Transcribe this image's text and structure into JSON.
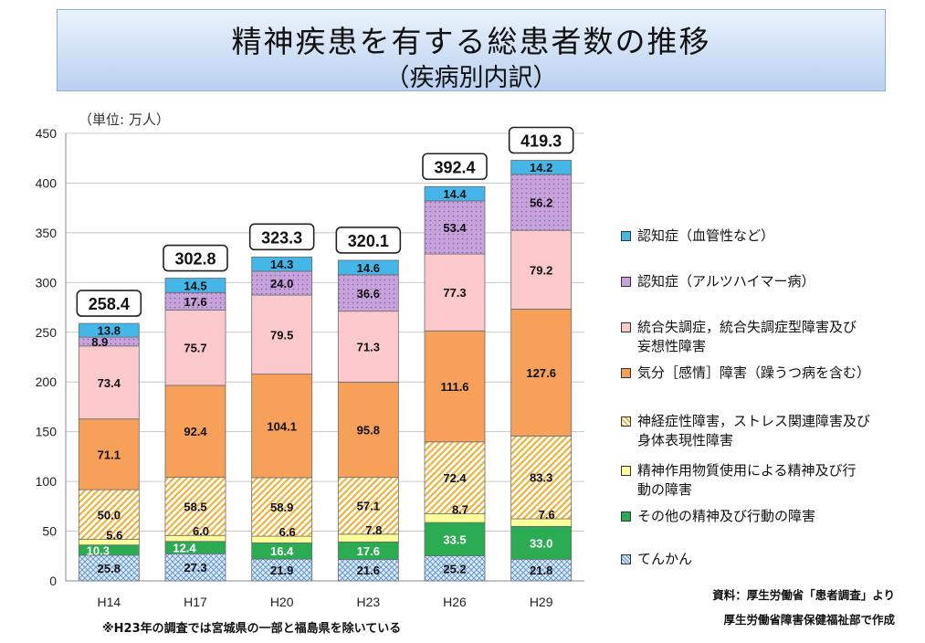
{
  "header": {
    "title": "精神疾患を有する総患者数の推移",
    "subtitle": "（疾病別内訳）"
  },
  "unit_label": "（単位: 万人）",
  "source": {
    "line1": "資料：厚生労働省「患者調査」より",
    "line2": "厚生労働省障害保健福祉部で作成"
  },
  "footnote": "※H23年の調査では宮城県の一部と福島県を除いている",
  "chart_data": {
    "type": "bar",
    "stacked": true,
    "title": "精神疾患を有する総患者数の推移",
    "ylim": [
      0,
      450
    ],
    "yticks": [
      0,
      50,
      100,
      150,
      200,
      250,
      300,
      350,
      400,
      450
    ],
    "grid": true,
    "legend_position": "right",
    "categories": [
      "H14",
      "H17",
      "H20",
      "H23",
      "H26",
      "H29"
    ],
    "totals": [
      "258.4",
      "302.8",
      "323.3",
      "320.1",
      "392.4",
      "419.3"
    ],
    "series": [
      {
        "name": "てんかん",
        "values": [
          25.8,
          27.3,
          21.9,
          21.6,
          25.2,
          21.8
        ],
        "labels": [
          "25.8",
          "27.3",
          "21.9",
          "21.6",
          "25.2",
          "21.8"
        ],
        "color": "#bcd7f0",
        "pattern": "crosshatch"
      },
      {
        "name": "その他の精神及び行動の障害",
        "values": [
          10.3,
          12.4,
          16.4,
          17.6,
          33.5,
          33.0
        ],
        "labels": [
          "10.3",
          "12.4",
          "16.4",
          "17.6",
          "33.5",
          "33.0"
        ],
        "color": "#2bab52"
      },
      {
        "name": "精神作用物質使用による精神及び行動の障害",
        "values": [
          5.6,
          6.0,
          6.6,
          7.8,
          8.7,
          7.6
        ],
        "labels": [
          "5.6",
          "6.0",
          "6.6",
          "7.8",
          "8.7",
          "7.6"
        ],
        "color": "#ffff99"
      },
      {
        "name": "神経症性障害，ストレス関連障害及び身体表現性障害",
        "values": [
          50.0,
          58.5,
          58.9,
          57.1,
          72.4,
          83.3
        ],
        "labels": [
          "50.0",
          "58.5",
          "58.9",
          "57.1",
          "72.4",
          "83.3"
        ],
        "color": "#fbd58a",
        "pattern": "diagonal"
      },
      {
        "name": "気分［感情］障害（躁うつ病を含む）",
        "values": [
          71.1,
          92.4,
          104.1,
          95.8,
          111.6,
          127.6
        ],
        "labels": [
          "71.1",
          "92.4",
          "104.1",
          "95.8",
          "111.6",
          "127.6"
        ],
        "color": "#f7a05a"
      },
      {
        "name": "統合失調症，統合失調症型障害及び妄想性障害",
        "values": [
          73.4,
          75.7,
          79.5,
          71.3,
          77.3,
          79.2
        ],
        "labels": [
          "73.4",
          "75.7",
          "79.5",
          "71.3",
          "77.3",
          "79.2"
        ],
        "color": "#fbc8cc"
      },
      {
        "name": "認知症（アルツハイマー病）",
        "values": [
          8.9,
          17.6,
          24.0,
          36.6,
          53.4,
          56.2
        ],
        "labels": [
          "8.9",
          "17.6",
          "24.0",
          "36.6",
          "53.4",
          "56.2"
        ],
        "color": "#c7a3dc",
        "pattern": "dots"
      },
      {
        "name": "認知症（血管性など）",
        "values": [
          13.8,
          14.5,
          14.3,
          14.6,
          14.4,
          14.2
        ],
        "labels": [
          "13.8",
          "14.5",
          "14.3",
          "14.6",
          "14.4",
          "14.2"
        ],
        "color": "#45b6e8"
      }
    ],
    "legend_order": [
      7,
      6,
      5,
      4,
      3,
      2,
      1,
      0
    ],
    "legend_labels": [
      "認知症（血管性など）",
      "認知症（アルツハイマー病）",
      "統合失調症，統合失調症型障害及び\n妄想性障害",
      "気分［感情］障害（躁うつ病を含む）",
      "神経症性障害，ストレス関連障害及び\n身体表現性障害",
      "精神作用物質使用による精神及び行\n動の障害",
      "その他の精神及び行動の障害",
      "てんかん"
    ]
  }
}
